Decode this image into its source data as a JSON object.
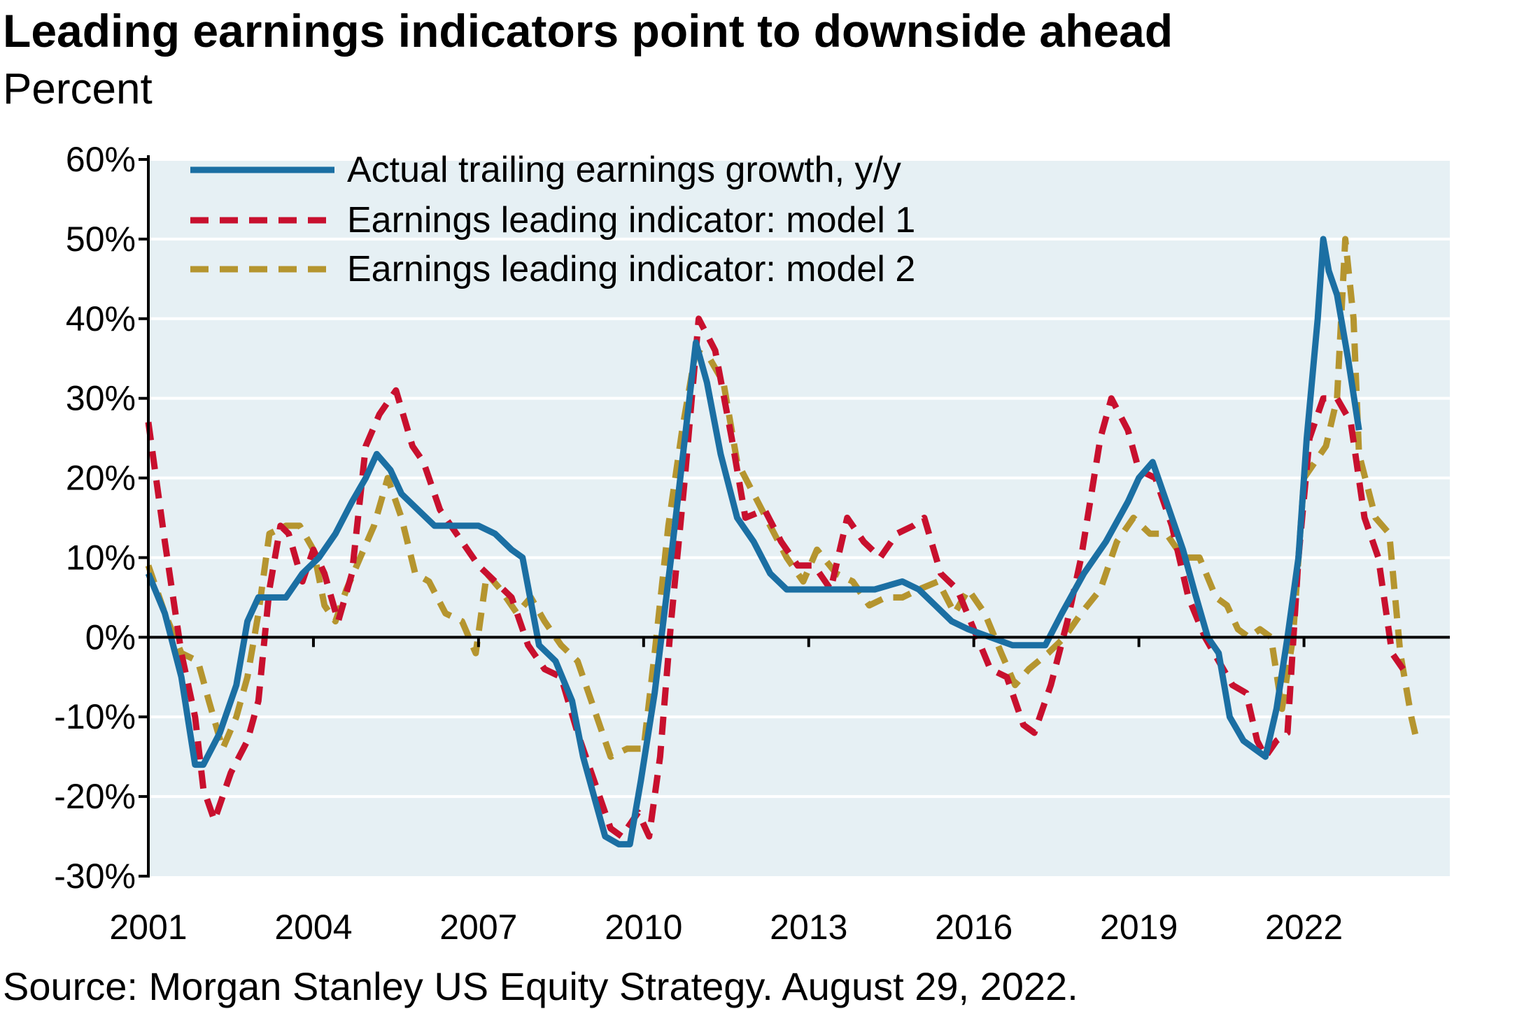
{
  "title": "Leading earnings indicators point to downside ahead",
  "subtitle": "Percent",
  "source": "Source: Morgan Stanley US Equity Strategy. August 29, 2022.",
  "colors": {
    "plot_bg": "#e6f0f4",
    "actual": "#1b6fa3",
    "model1": "#c8102e",
    "model2": "#b5952f",
    "grid": "#ffffff",
    "axis": "#000000"
  },
  "chart_data": {
    "type": "line",
    "title": "Leading earnings indicators point to downside ahead",
    "ylabel": "Percent",
    "xlabel": "",
    "xlim": [
      2001,
      2024.65
    ],
    "ylim": [
      -30,
      60
    ],
    "x_ticks": [
      2001,
      2004,
      2007,
      2010,
      2013,
      2016,
      2019,
      2022
    ],
    "x_tick_labels": [
      "2001",
      "2004",
      "2007",
      "2010",
      "2013",
      "2016",
      "2019",
      "2022"
    ],
    "y_ticks": [
      -30,
      -20,
      -10,
      0,
      10,
      20,
      30,
      40,
      50,
      60
    ],
    "y_tick_labels": [
      "-30%",
      "-20%",
      "-10%",
      "0%",
      "10%",
      "20%",
      "30%",
      "40%",
      "50%",
      "60%"
    ],
    "grid": true,
    "legend_position": "top-left",
    "series": [
      {
        "name": "Actual trailing earnings growth, y/y",
        "style": "solid",
        "points": [
          [
            2001.0,
            8
          ],
          [
            2001.3,
            3
          ],
          [
            2001.6,
            -5
          ],
          [
            2001.85,
            -16
          ],
          [
            2002.0,
            -16
          ],
          [
            2002.3,
            -12
          ],
          [
            2002.6,
            -6
          ],
          [
            2002.8,
            2
          ],
          [
            2003.0,
            5
          ],
          [
            2003.2,
            5
          ],
          [
            2003.5,
            5
          ],
          [
            2003.8,
            8
          ],
          [
            2004.1,
            10
          ],
          [
            2004.4,
            13
          ],
          [
            2004.7,
            17
          ],
          [
            2004.95,
            20
          ],
          [
            2005.15,
            23
          ],
          [
            2005.4,
            21
          ],
          [
            2005.6,
            18
          ],
          [
            2005.9,
            16
          ],
          [
            2006.2,
            14
          ],
          [
            2006.5,
            14
          ],
          [
            2006.8,
            14
          ],
          [
            2007.0,
            14
          ],
          [
            2007.3,
            13
          ],
          [
            2007.6,
            11
          ],
          [
            2007.8,
            10
          ],
          [
            2008.1,
            -1
          ],
          [
            2008.4,
            -3
          ],
          [
            2008.7,
            -8
          ],
          [
            2008.9,
            -15
          ],
          [
            2009.1,
            -20
          ],
          [
            2009.3,
            -25
          ],
          [
            2009.55,
            -26
          ],
          [
            2009.75,
            -26
          ],
          [
            2009.95,
            -18
          ],
          [
            2010.2,
            -7
          ],
          [
            2010.5,
            10
          ],
          [
            2010.75,
            25
          ],
          [
            2010.95,
            37
          ],
          [
            2011.15,
            32
          ],
          [
            2011.4,
            23
          ],
          [
            2011.7,
            15
          ],
          [
            2012.0,
            12
          ],
          [
            2012.3,
            8
          ],
          [
            2012.6,
            6
          ],
          [
            2012.9,
            6
          ],
          [
            2013.3,
            6
          ],
          [
            2013.8,
            6
          ],
          [
            2014.2,
            6
          ],
          [
            2014.7,
            7
          ],
          [
            2015.0,
            6
          ],
          [
            2015.3,
            4
          ],
          [
            2015.6,
            2
          ],
          [
            2015.9,
            1
          ],
          [
            2016.3,
            0
          ],
          [
            2016.7,
            -1
          ],
          [
            2017.0,
            -1
          ],
          [
            2017.3,
            -1
          ],
          [
            2017.6,
            3
          ],
          [
            2018.0,
            8
          ],
          [
            2018.4,
            12
          ],
          [
            2018.8,
            17
          ],
          [
            2019.0,
            20
          ],
          [
            2019.25,
            22
          ],
          [
            2019.5,
            17
          ],
          [
            2019.8,
            11
          ],
          [
            2020.0,
            6
          ],
          [
            2020.25,
            0
          ],
          [
            2020.45,
            -2
          ],
          [
            2020.65,
            -10
          ],
          [
            2020.9,
            -13
          ],
          [
            2021.1,
            -14
          ],
          [
            2021.3,
            -15
          ],
          [
            2021.5,
            -9
          ],
          [
            2021.7,
            0
          ],
          [
            2021.9,
            10
          ],
          [
            2022.05,
            25
          ],
          [
            2022.25,
            40
          ],
          [
            2022.35,
            50
          ],
          [
            2022.45,
            46
          ],
          [
            2022.6,
            43
          ],
          [
            2022.8,
            35
          ],
          [
            2023.0,
            26
          ]
        ]
      },
      {
        "name": "Earnings leading indicator: model 1",
        "style": "dashed",
        "points": [
          [
            2001.0,
            27
          ],
          [
            2001.3,
            12
          ],
          [
            2001.6,
            -2
          ],
          [
            2001.85,
            -10
          ],
          [
            2002.0,
            -19
          ],
          [
            2002.2,
            -23
          ],
          [
            2002.5,
            -17
          ],
          [
            2002.8,
            -13
          ],
          [
            2003.0,
            -8
          ],
          [
            2003.2,
            6
          ],
          [
            2003.4,
            14
          ],
          [
            2003.55,
            13
          ],
          [
            2003.8,
            7
          ],
          [
            2004.0,
            11
          ],
          [
            2004.2,
            8
          ],
          [
            2004.45,
            2
          ],
          [
            2004.7,
            8
          ],
          [
            2004.95,
            24
          ],
          [
            2005.2,
            28
          ],
          [
            2005.5,
            31
          ],
          [
            2005.8,
            24
          ],
          [
            2006.0,
            22
          ],
          [
            2006.3,
            16
          ],
          [
            2006.6,
            13
          ],
          [
            2007.0,
            9
          ],
          [
            2007.3,
            7
          ],
          [
            2007.6,
            5
          ],
          [
            2007.9,
            -1
          ],
          [
            2008.2,
            -4
          ],
          [
            2008.5,
            -5
          ],
          [
            2008.8,
            -12
          ],
          [
            2009.1,
            -18
          ],
          [
            2009.4,
            -24
          ],
          [
            2009.6,
            -25
          ],
          [
            2009.9,
            -22
          ],
          [
            2010.1,
            -25
          ],
          [
            2010.3,
            -15
          ],
          [
            2010.5,
            2
          ],
          [
            2010.75,
            20
          ],
          [
            2011.0,
            40
          ],
          [
            2011.3,
            36
          ],
          [
            2011.6,
            25
          ],
          [
            2011.85,
            15
          ],
          [
            2012.2,
            16
          ],
          [
            2012.5,
            12
          ],
          [
            2012.8,
            9
          ],
          [
            2013.1,
            9
          ],
          [
            2013.4,
            6
          ],
          [
            2013.7,
            15
          ],
          [
            2014.0,
            12
          ],
          [
            2014.3,
            10
          ],
          [
            2014.6,
            13
          ],
          [
            2014.9,
            14
          ],
          [
            2015.1,
            15
          ],
          [
            2015.4,
            8
          ],
          [
            2015.7,
            6
          ],
          [
            2016.0,
            1
          ],
          [
            2016.3,
            -4
          ],
          [
            2016.6,
            -5
          ],
          [
            2016.9,
            -11
          ],
          [
            2017.1,
            -12
          ],
          [
            2017.4,
            -6
          ],
          [
            2017.7,
            2
          ],
          [
            2017.95,
            10
          ],
          [
            2018.3,
            25
          ],
          [
            2018.5,
            30
          ],
          [
            2018.8,
            26
          ],
          [
            2019.0,
            21
          ],
          [
            2019.3,
            20
          ],
          [
            2019.6,
            14
          ],
          [
            2019.9,
            5
          ],
          [
            2020.2,
            0
          ],
          [
            2020.45,
            -3
          ],
          [
            2020.7,
            -6
          ],
          [
            2020.95,
            -7
          ],
          [
            2021.15,
            -13
          ],
          [
            2021.3,
            -15
          ],
          [
            2021.5,
            -13
          ],
          [
            2021.7,
            -12
          ],
          [
            2021.9,
            10
          ],
          [
            2022.1,
            25
          ],
          [
            2022.35,
            30
          ],
          [
            2022.6,
            30
          ],
          [
            2022.85,
            27
          ],
          [
            2023.1,
            15
          ],
          [
            2023.35,
            10
          ],
          [
            2023.6,
            -2
          ],
          [
            2023.8,
            -4
          ]
        ]
      },
      {
        "name": "Earnings leading indicator: model 2",
        "style": "dashed",
        "points": [
          [
            2001.0,
            9
          ],
          [
            2001.3,
            3
          ],
          [
            2001.6,
            -2
          ],
          [
            2001.9,
            -3
          ],
          [
            2002.1,
            -8
          ],
          [
            2002.35,
            -14
          ],
          [
            2002.6,
            -10
          ],
          [
            2002.8,
            -5
          ],
          [
            2003.0,
            3
          ],
          [
            2003.2,
            13
          ],
          [
            2003.5,
            14
          ],
          [
            2003.75,
            14
          ],
          [
            2004.0,
            11
          ],
          [
            2004.2,
            4
          ],
          [
            2004.4,
            2
          ],
          [
            2004.6,
            6
          ],
          [
            2004.85,
            10
          ],
          [
            2005.1,
            14
          ],
          [
            2005.35,
            20
          ],
          [
            2005.6,
            15
          ],
          [
            2005.85,
            8
          ],
          [
            2006.1,
            7
          ],
          [
            2006.4,
            3
          ],
          [
            2006.7,
            2
          ],
          [
            2006.95,
            -2
          ],
          [
            2007.15,
            8
          ],
          [
            2007.4,
            6
          ],
          [
            2007.7,
            3
          ],
          [
            2007.95,
            5
          ],
          [
            2008.2,
            2
          ],
          [
            2008.5,
            -1
          ],
          [
            2008.8,
            -3
          ],
          [
            2009.1,
            -9
          ],
          [
            2009.4,
            -15
          ],
          [
            2009.7,
            -14
          ],
          [
            2010.0,
            -14
          ],
          [
            2010.2,
            -2
          ],
          [
            2010.45,
            14
          ],
          [
            2010.7,
            26
          ],
          [
            2010.95,
            36
          ],
          [
            2011.2,
            35
          ],
          [
            2011.45,
            32
          ],
          [
            2011.7,
            22
          ],
          [
            2012.0,
            18
          ],
          [
            2012.3,
            14
          ],
          [
            2012.6,
            10
          ],
          [
            2012.9,
            7
          ],
          [
            2013.15,
            11
          ],
          [
            2013.5,
            8
          ],
          [
            2013.8,
            7
          ],
          [
            2014.1,
            4
          ],
          [
            2014.4,
            5
          ],
          [
            2014.7,
            5
          ],
          [
            2015.0,
            6
          ],
          [
            2015.35,
            7
          ],
          [
            2015.65,
            3
          ],
          [
            2015.9,
            6
          ],
          [
            2016.2,
            3
          ],
          [
            2016.5,
            -2
          ],
          [
            2016.75,
            -6
          ],
          [
            2017.0,
            -4
          ],
          [
            2017.35,
            -2
          ],
          [
            2017.65,
            0
          ],
          [
            2017.95,
            3
          ],
          [
            2018.3,
            6
          ],
          [
            2018.6,
            12
          ],
          [
            2018.9,
            15
          ],
          [
            2019.2,
            13
          ],
          [
            2019.5,
            13
          ],
          [
            2019.8,
            10
          ],
          [
            2020.1,
            10
          ],
          [
            2020.4,
            5
          ],
          [
            2020.6,
            4
          ],
          [
            2020.8,
            1
          ],
          [
            2021.0,
            0
          ],
          [
            2021.2,
            1
          ],
          [
            2021.4,
            0
          ],
          [
            2021.6,
            -9
          ],
          [
            2021.8,
            0
          ],
          [
            2022.0,
            20
          ],
          [
            2022.2,
            22
          ],
          [
            2022.4,
            24
          ],
          [
            2022.6,
            30
          ],
          [
            2022.75,
            50
          ],
          [
            2022.9,
            40
          ],
          [
            2023.0,
            23
          ],
          [
            2023.3,
            15
          ],
          [
            2023.55,
            13
          ],
          [
            2023.75,
            -2
          ],
          [
            2023.95,
            -10
          ],
          [
            2024.05,
            -13
          ]
        ]
      }
    ]
  }
}
